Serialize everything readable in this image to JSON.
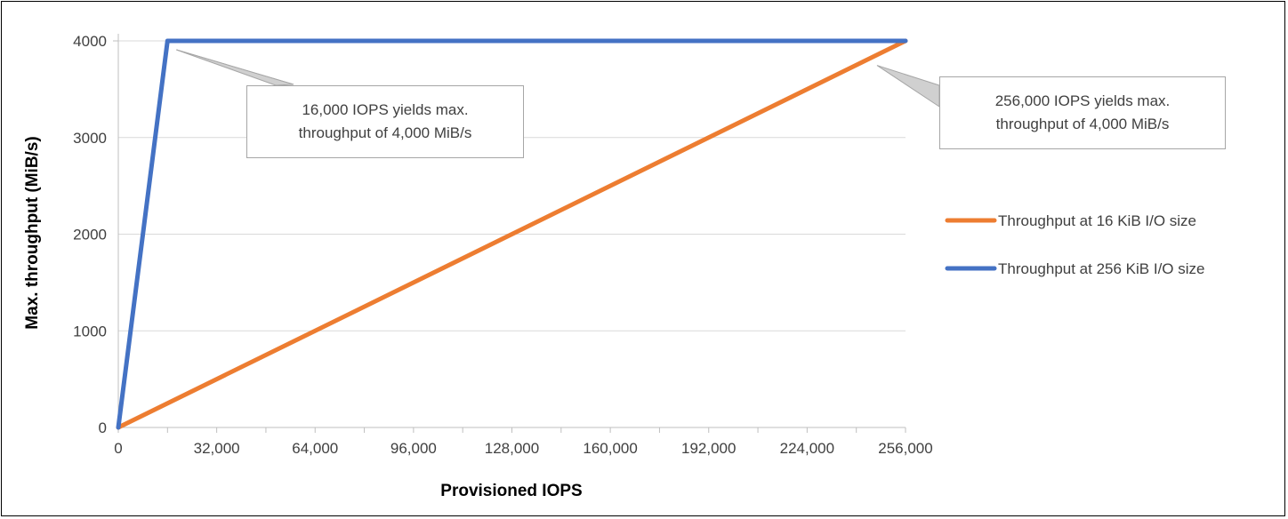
{
  "chart_data": {
    "type": "line",
    "xlabel": "Provisioned IOPS",
    "ylabel": "Max. throughput (MiB/s)",
    "xlim": [
      0,
      256000
    ],
    "ylim": [
      0,
      4000
    ],
    "x_ticks": [
      0,
      32000,
      64000,
      96000,
      128000,
      160000,
      192000,
      224000,
      256000
    ],
    "x_tick_labels": [
      "0",
      "32,000",
      "64,000",
      "96,000",
      "128,000",
      "160,000",
      "192,000",
      "224,000",
      "256,000"
    ],
    "y_ticks": [
      0,
      1000,
      2000,
      3000,
      4000
    ],
    "y_tick_labels": [
      "0",
      "1000",
      "2000",
      "3000",
      "4000"
    ],
    "grid": "horizontal",
    "legend_position": "right",
    "series": [
      {
        "name": "Throughput at 16 KiB I/O size",
        "color": "#ed7d31",
        "points": [
          [
            0,
            0
          ],
          [
            256000,
            4000
          ]
        ]
      },
      {
        "name": "Throughput at 256 KiB I/O size",
        "color": "#4472c4",
        "points": [
          [
            0,
            0
          ],
          [
            16000,
            4000
          ],
          [
            256000,
            4000
          ]
        ]
      }
    ],
    "annotations": [
      {
        "lines": [
          "16,000 IOPS yields max.",
          "throughput of 4,000 MiB/s"
        ],
        "x": 16000,
        "y": 4000
      },
      {
        "lines": [
          "256,000 IOPS yields max.",
          "throughput of 4,000 MiB/s"
        ],
        "x": 245000,
        "y": 3820
      }
    ]
  }
}
